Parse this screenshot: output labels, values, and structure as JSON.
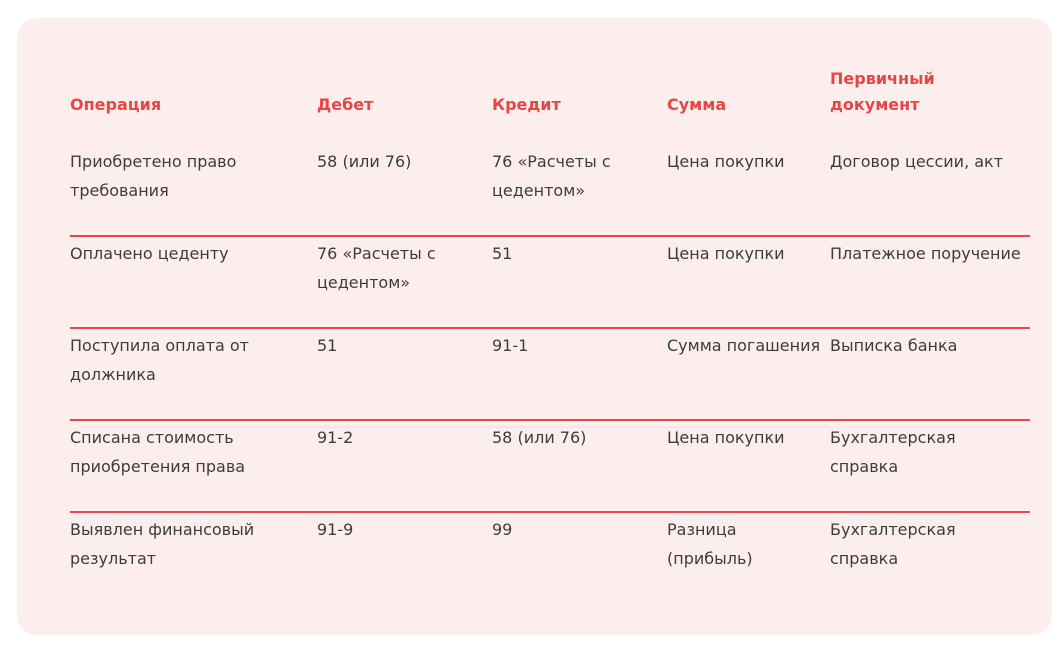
{
  "table": {
    "headers": [
      "Операция",
      "Дебет",
      "Кредит",
      "Сумма",
      "Первичный документ"
    ],
    "rows": [
      [
        "Приобретено право требования",
        "58 (или 76)",
        "76 «Расчеты с цедентом»",
        "Цена покупки",
        "Договор цессии, акт"
      ],
      [
        "Оплачено цеденту",
        "76 «Расчеты с цедентом»",
        "51",
        "Цена покупки",
        "Платежное поручение"
      ],
      [
        "Поступила оплата от должника",
        "51",
        "91-1",
        "Сумма погашения",
        "Выписка банка"
      ],
      [
        "Списана стоимость приобретения права",
        "91-2",
        "58 (или 76)",
        "Цена покупки",
        "Бухгалтерская справка"
      ],
      [
        "Выявлен финансовый результат",
        "91-9",
        "99",
        "Разница (прибыль)",
        "Бухгалтерская справка"
      ]
    ]
  },
  "colors": {
    "background": "#fdeeee",
    "accent": "#e84545",
    "text": "#3c3c3c"
  }
}
